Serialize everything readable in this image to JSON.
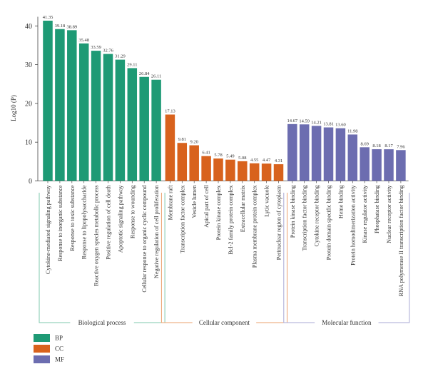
{
  "chart_data": {
    "type": "bar",
    "ylabel": "Log10 (P)",
    "ylim": [
      0,
      42
    ],
    "yticks": [
      "0",
      "10",
      "20",
      "30",
      "40"
    ],
    "groups": [
      {
        "name": "Biological process",
        "legend": "BP",
        "color": "#1e9a75",
        "bracket_color": "#7fc8ae",
        "categories": [
          "Cytokine-mediated signaling pathway",
          "Response to inorganic substance",
          "Response to toxic substance",
          "Response to lipopolysaccharide",
          "Reactive oxygen species metabolic process",
          "Positive regulation of cell death",
          "Apoptotic signaling pathway",
          "Response to wounding",
          "Cellular response to organic cyclic compound",
          "Negative regulation of cell proliferation"
        ],
        "values": [
          41.35,
          39.18,
          38.89,
          35.48,
          33.59,
          32.76,
          31.29,
          29.11,
          26.84,
          26.11
        ],
        "labels": [
          "41.35",
          "39.18",
          "38.89",
          "35.48",
          "33.59",
          "32.76",
          "31.29",
          "29.11",
          "26.84",
          "26.11"
        ]
      },
      {
        "name": "Cellular component",
        "legend": "CC",
        "color": "#d8621d",
        "bracket_color": "#eba06e",
        "categories": [
          "Membrane raft",
          "Transcription factor complex",
          "Vesicle lumen",
          "Apical part of cell",
          "Protein kinase complex",
          "Bcl-2 family protein complex",
          "Extracellular matrix",
          "Plasma membrane protein complex",
          "Lytic vacuole",
          "Perinuclear region of cytoplasm"
        ],
        "values": [
          17.13,
          9.81,
          9.2,
          6.41,
          5.78,
          5.49,
          5.08,
          4.55,
          4.47,
          4.31
        ],
        "labels": [
          "17.13",
          "9.81",
          "9.20",
          "6.41",
          "5.78",
          "5.49",
          "5.08",
          "4.55",
          "4.47",
          "4.31"
        ]
      },
      {
        "name": "Molecular function",
        "legend": "MF",
        "color": "#6c6db0",
        "bracket_color": "#a9a9d4",
        "categories": [
          "Protein kinase binding",
          "Transcription factor binding",
          "Cytokine receptor binding",
          "Protein domain specific binding",
          "Heme binding",
          "Protein homodimerization activity",
          "Kinase regulator activity",
          "Phosphatase binding",
          "Nuclear receptor activity",
          "RNA polymerase II transcription factor binding"
        ],
        "values": [
          14.67,
          14.59,
          14.21,
          13.81,
          13.6,
          11.98,
          8.69,
          8.18,
          8.17,
          7.96
        ],
        "labels": [
          "14.67",
          "14.59",
          "14.21",
          "13.81",
          "13.60",
          "11.98",
          "8.69",
          "8.18",
          "8.17",
          "7.96"
        ]
      }
    ]
  }
}
